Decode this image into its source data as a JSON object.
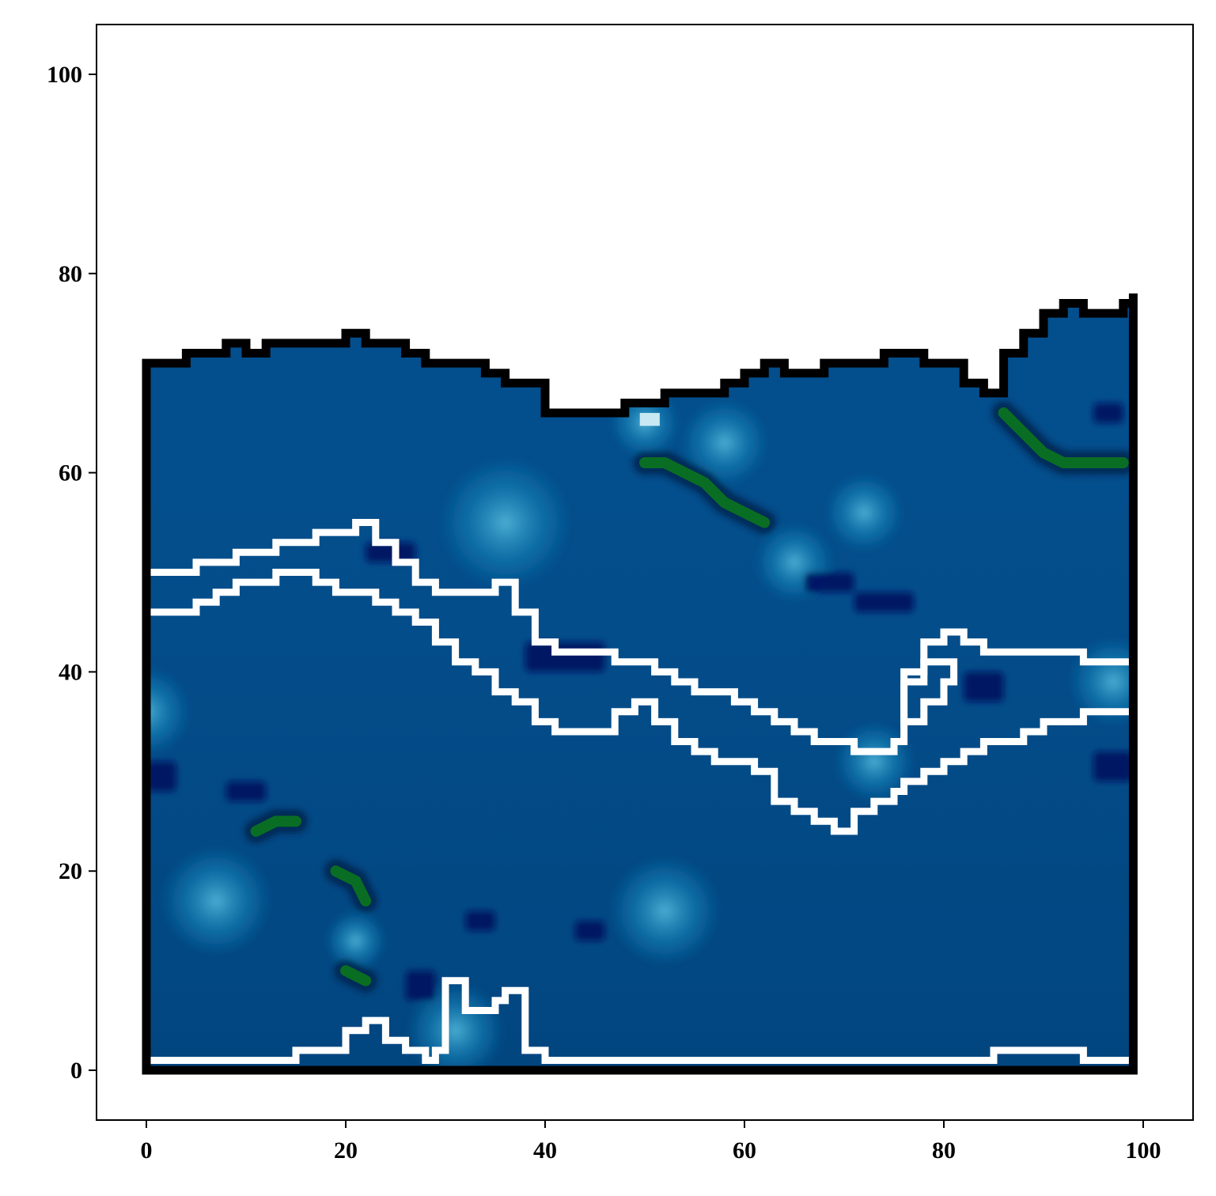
{
  "chart_data": {
    "type": "heatmap",
    "title": "",
    "xlabel": "",
    "ylabel": "",
    "xlim": [
      -5,
      105
    ],
    "ylim": [
      -5,
      105
    ],
    "x_ticks": [
      0,
      20,
      40,
      60,
      80,
      100
    ],
    "y_ticks": [
      0,
      20,
      40,
      60,
      80,
      100
    ],
    "x_tick_labels": [
      "0",
      "20",
      "40",
      "60",
      "80",
      "100"
    ],
    "y_tick_labels": [
      "0",
      "20",
      "40",
      "60",
      "80",
      "100"
    ],
    "grid": false,
    "legend": "none",
    "colors": {
      "field_base": "#034f8e",
      "field_dark": "#020c5e",
      "field_light": "#1383b8",
      "highlight": "#c8e8f2",
      "green_streak": "#0a7a1a",
      "boundary": "#000000",
      "contour": "#ffffff"
    },
    "domain_boundary": {
      "x": [
        0,
        0,
        2,
        4,
        6,
        8,
        10,
        12,
        14,
        16,
        18,
        20,
        22,
        24,
        26,
        28,
        30,
        32,
        34,
        36,
        38,
        40,
        42,
        44,
        46,
        48,
        50,
        52,
        54,
        56,
        58,
        60,
        62,
        64,
        66,
        68,
        70,
        72,
        74,
        76,
        78,
        80,
        82,
        84,
        86,
        88,
        90,
        92,
        94,
        96,
        98,
        99,
        99
      ],
      "y": [
        0,
        71,
        71,
        72,
        72,
        73,
        72,
        73,
        73,
        73,
        73,
        74,
        73,
        73,
        72,
        71,
        71,
        71,
        70,
        69,
        69,
        66,
        66,
        66,
        66,
        67,
        67,
        68,
        68,
        68,
        69,
        70,
        71,
        70,
        70,
        71,
        71,
        71,
        72,
        72,
        71,
        71,
        69,
        68,
        72,
        74,
        76,
        77,
        76,
        76,
        77,
        78,
        0
      ]
    },
    "contours": [
      {
        "x": [
          0,
          3,
          5,
          7,
          9,
          11,
          13,
          15,
          17,
          19,
          21,
          23,
          25,
          27,
          29,
          31,
          33,
          35,
          37,
          39,
          41,
          43,
          45,
          47,
          49,
          51,
          53,
          55,
          57,
          59,
          61,
          63,
          65,
          67,
          69,
          71,
          73,
          75,
          76,
          78,
          80,
          82,
          84,
          86,
          88,
          90,
          92,
          94,
          96,
          99
        ],
        "y": [
          50,
          50,
          51,
          51,
          52,
          52,
          53,
          53,
          54,
          54,
          55,
          53,
          51,
          49,
          48,
          48,
          48,
          49,
          46,
          43,
          42,
          42,
          42,
          41,
          41,
          40,
          39,
          38,
          38,
          37,
          36,
          35,
          34,
          33,
          33,
          32,
          32,
          33,
          40,
          43,
          44,
          43,
          42,
          42,
          42,
          42,
          42,
          41,
          41,
          42
        ]
      },
      {
        "x": [
          0,
          3,
          5,
          7,
          9,
          11,
          13,
          15,
          17,
          19,
          21,
          23,
          25,
          27,
          29,
          31,
          33,
          35,
          37,
          39,
          41,
          43,
          45,
          47,
          49,
          51,
          53,
          55,
          57,
          59,
          61,
          63,
          65,
          67,
          69,
          71,
          73,
          75,
          76,
          78,
          80,
          82,
          84,
          86,
          88,
          90,
          92,
          94,
          96,
          99
        ],
        "y": [
          46,
          46,
          47,
          48,
          49,
          49,
          50,
          50,
          49,
          48,
          48,
          47,
          46,
          45,
          43,
          41,
          40,
          38,
          37,
          35,
          34,
          34,
          34,
          36,
          37,
          35,
          33,
          32,
          31,
          31,
          30,
          27,
          26,
          25,
          24,
          26,
          27,
          28,
          29,
          30,
          31,
          32,
          33,
          33,
          34,
          35,
          35,
          36,
          36,
          36
        ]
      },
      {
        "x": [
          0,
          5,
          10,
          15,
          18,
          20,
          22,
          24,
          26,
          28,
          29,
          30,
          31,
          32,
          33,
          34,
          35,
          36,
          37,
          38,
          40,
          50,
          60,
          70,
          80,
          85,
          90,
          94,
          96,
          99
        ],
        "y": [
          1,
          1,
          1,
          2,
          2,
          4,
          5,
          3,
          2,
          1,
          2,
          9,
          9,
          6,
          6,
          6,
          7,
          8,
          8,
          2,
          1,
          1,
          1,
          1,
          1,
          2,
          2,
          1,
          1,
          2
        ]
      },
      {
        "x": [
          76,
          78,
          80,
          81,
          80,
          78,
          76,
          76
        ],
        "y": [
          39,
          41,
          41,
          39,
          37,
          35,
          35,
          39
        ]
      }
    ],
    "green_streaks": [
      {
        "x": [
          50,
          52,
          54,
          56,
          58,
          60,
          62
        ],
        "y": [
          61,
          61,
          60,
          59,
          57,
          56,
          55
        ]
      },
      {
        "x": [
          86,
          88,
          90,
          92,
          94,
          96,
          98
        ],
        "y": [
          66,
          64,
          62,
          61,
          61,
          61,
          61
        ]
      },
      {
        "x": [
          11,
          13,
          15
        ],
        "y": [
          24,
          25,
          25
        ]
      },
      {
        "x": [
          19,
          21,
          22
        ],
        "y": [
          20,
          19,
          17
        ]
      },
      {
        "x": [
          20,
          22
        ],
        "y": [
          10,
          9
        ]
      }
    ],
    "dark_patches": [
      {
        "x": 22,
        "y": 51,
        "w": 5,
        "h": 2
      },
      {
        "x": 38,
        "y": 40,
        "w": 8,
        "h": 3
      },
      {
        "x": 66,
        "y": 48,
        "w": 5,
        "h": 2
      },
      {
        "x": 71,
        "y": 46,
        "w": 6,
        "h": 2
      },
      {
        "x": 95,
        "y": 29,
        "w": 4,
        "h": 3
      },
      {
        "x": 0,
        "y": 28,
        "w": 3,
        "h": 3
      },
      {
        "x": 26,
        "y": 7,
        "w": 3,
        "h": 3
      },
      {
        "x": 43,
        "y": 13,
        "w": 3,
        "h": 2
      },
      {
        "x": 32,
        "y": 14,
        "w": 3,
        "h": 2
      },
      {
        "x": 8,
        "y": 27,
        "w": 4,
        "h": 2
      },
      {
        "x": 82,
        "y": 37,
        "w": 4,
        "h": 3
      },
      {
        "x": 95,
        "y": 65,
        "w": 3,
        "h": 2
      }
    ],
    "light_patches": [
      {
        "x": 50,
        "y": 65,
        "r": 1.6
      },
      {
        "x": 73,
        "y": 31,
        "r": 1.8
      },
      {
        "x": 21,
        "y": 13,
        "r": 1.4
      },
      {
        "x": 31,
        "y": 4,
        "r": 2.2
      },
      {
        "x": 0,
        "y": 36,
        "r": 2
      },
      {
        "x": 7,
        "y": 17,
        "r": 2.5
      },
      {
        "x": 52,
        "y": 16,
        "r": 2.5
      },
      {
        "x": 65,
        "y": 51,
        "r": 1.8
      },
      {
        "x": 72,
        "y": 56,
        "r": 1.8
      },
      {
        "x": 97,
        "y": 39,
        "r": 2
      },
      {
        "x": 36,
        "y": 55,
        "r": 3
      },
      {
        "x": 58,
        "y": 63,
        "r": 2
      }
    ]
  }
}
